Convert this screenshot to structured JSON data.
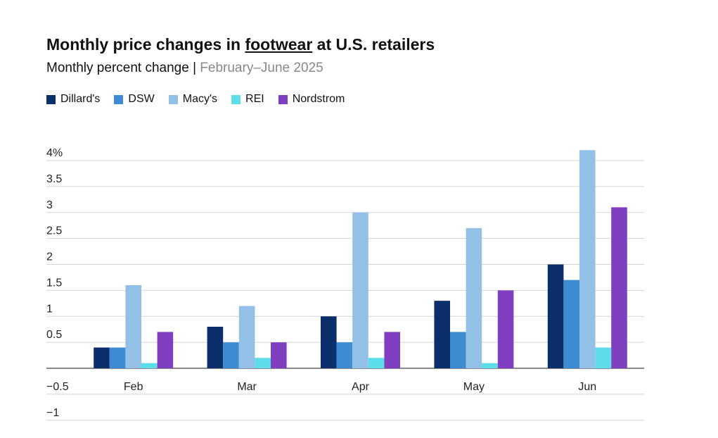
{
  "chart_data": {
    "type": "bar",
    "title": [
      "Monthly price changes in ",
      "footwear",
      " at U.S. retailers"
    ],
    "subtitle": [
      "Monthly percent change | ",
      "February–June 2025"
    ],
    "categories": [
      "Feb",
      "Mar",
      "Apr",
      "May",
      "Jun"
    ],
    "series": [
      {
        "name": "Dillard's",
        "color": "#0b2f6b",
        "values": [
          0.4,
          0.8,
          1.0,
          1.3,
          2.0
        ]
      },
      {
        "name": "DSW",
        "color": "#3d8bd0",
        "values": [
          0.4,
          0.5,
          0.5,
          0.7,
          1.7
        ]
      },
      {
        "name": "Macy's",
        "color": "#93c0e6",
        "values": [
          1.6,
          1.2,
          3.0,
          2.7,
          4.2
        ]
      },
      {
        "name": "REI",
        "color": "#5cdde8",
        "values": [
          0.1,
          0.2,
          0.2,
          0.1,
          0.4
        ]
      },
      {
        "name": "Nordstrom",
        "color": "#7f3fc0",
        "values": [
          0.7,
          0.5,
          0.7,
          1.5,
          3.1
        ]
      }
    ],
    "ylim": [
      -1,
      4.2
    ],
    "yticks": [
      {
        "value": -1,
        "label": "−1"
      },
      {
        "value": -0.5,
        "label": "−0.5"
      },
      0.5,
      1,
      1.5,
      2,
      2.5,
      3,
      3.5,
      {
        "value": 4,
        "label": "4%"
      }
    ],
    "grid": true
  }
}
